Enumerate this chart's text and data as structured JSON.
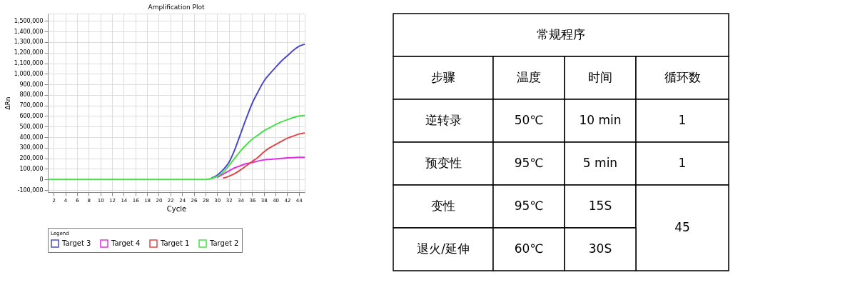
{
  "chart_data": [
    {
      "type": "line",
      "title": "Amplification Plot",
      "xlabel": "Cycle",
      "ylabel": "ΔRn",
      "legend_title": "Legend",
      "series": [
        {
          "name": "Target 3",
          "color": "#4a4ac8",
          "x": [
            29,
            30,
            31,
            32,
            33,
            34,
            35,
            36,
            37,
            38,
            39,
            40,
            41,
            42,
            43,
            44,
            45
          ],
          "values": [
            12000,
            40000,
            90000,
            160000,
            280000,
            430000,
            580000,
            720000,
            830000,
            930000,
            1000000,
            1060000,
            1120000,
            1170000,
            1220000,
            1260000,
            1280000
          ]
        },
        {
          "name": "Target 4",
          "color": "#e030e0",
          "x": [
            30,
            31,
            32,
            33,
            34,
            35,
            36,
            37,
            38,
            39,
            40,
            41,
            42,
            43,
            44,
            45
          ],
          "values": [
            20000,
            50000,
            80000,
            110000,
            130000,
            150000,
            160000,
            175000,
            185000,
            190000,
            195000,
            200000,
            205000,
            207000,
            210000,
            210000
          ]
        },
        {
          "name": "Target 1",
          "color": "#e04848",
          "x": [
            31,
            32,
            33,
            34,
            35,
            36,
            37,
            38,
            39,
            40,
            41,
            42,
            43,
            44,
            45
          ],
          "values": [
            12000,
            30000,
            55000,
            90000,
            130000,
            170000,
            210000,
            260000,
            300000,
            330000,
            360000,
            390000,
            410000,
            430000,
            440000
          ]
        },
        {
          "name": "Target 2",
          "color": "#48e048",
          "x": [
            1,
            5,
            10,
            15,
            20,
            25,
            28,
            29,
            30,
            31,
            32,
            33,
            34,
            35,
            36,
            37,
            38,
            39,
            40,
            41,
            42,
            43,
            44,
            45
          ],
          "values": [
            0,
            0,
            0,
            0,
            0,
            0,
            0,
            8000,
            30000,
            65000,
            130000,
            200000,
            270000,
            330000,
            380000,
            420000,
            460000,
            490000,
            520000,
            545000,
            565000,
            585000,
            600000,
            605000
          ]
        }
      ],
      "xlim": [
        1,
        45
      ],
      "xticks": [
        2,
        4,
        6,
        8,
        10,
        12,
        14,
        16,
        18,
        20,
        22,
        24,
        26,
        28,
        30,
        32,
        34,
        36,
        38,
        40,
        42,
        44
      ],
      "ylim": [
        -120000,
        1570000
      ],
      "yticks": [
        {
          "value": -100000,
          "label": "-100,000"
        },
        0,
        {
          "value": 100000,
          "label": "100,000"
        },
        {
          "value": 200000,
          "label": "200,000"
        },
        {
          "value": 300000,
          "label": "300,000"
        },
        {
          "value": 400000,
          "label": "400,000"
        },
        {
          "value": 500000,
          "label": "500,000"
        },
        {
          "value": 600000,
          "label": "600,000"
        },
        {
          "value": 700000,
          "label": "700,000"
        },
        {
          "value": 800000,
          "label": "800,000"
        },
        {
          "value": 900000,
          "label": "900,000"
        },
        {
          "value": 1000000,
          "label": "1,000,000"
        },
        {
          "value": 1100000,
          "label": "1,100,000"
        },
        {
          "value": 1200000,
          "label": "1,200,000"
        },
        {
          "value": 1300000,
          "label": "1,300,000"
        },
        {
          "value": 1400000,
          "label": "1,400,000"
        },
        {
          "value": 1500000,
          "label": "1,500,000"
        }
      ],
      "grid": true,
      "legend": "bottom",
      "marker": "none",
      "line_style": "solid"
    },
    {
      "type": "other",
      "title": "常规程序",
      "annotations": [
        "步骤",
        "温度",
        "时间",
        "循环数",
        "逆转录",
        "50℃",
        "10 min",
        "1",
        "预变性",
        "95℃",
        "5 min",
        "1",
        "变性",
        "95℃",
        "15S",
        "45",
        "退火/延伸",
        "60℃",
        "30S"
      ]
    }
  ]
}
